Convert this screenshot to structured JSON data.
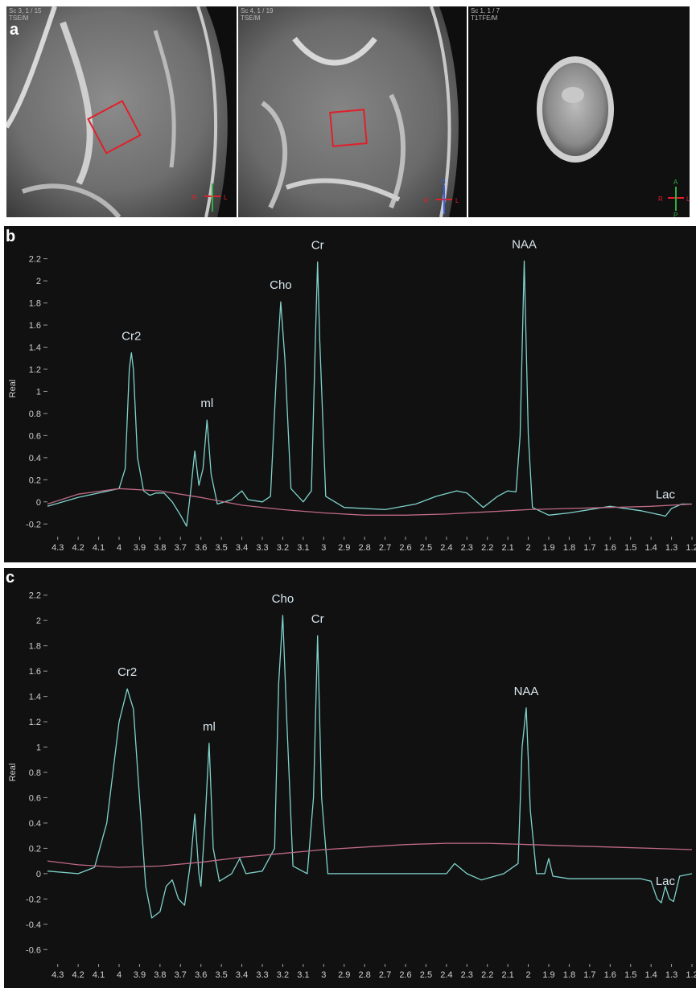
{
  "panel_a": {
    "letter": "a",
    "images": [
      {
        "label": "Sc 3, 1 / 15\nTSE/M",
        "orientation": {
          "right": "R",
          "left": "L"
        }
      },
      {
        "label": "Sc 4, 1 / 19\nTSE/M",
        "orientation": {
          "head": "H",
          "right": "R",
          "left": "L"
        }
      },
      {
        "label": "Sc 1, 1 / 7\nT1TFE/M",
        "orientation": {
          "anterior": "A",
          "posterior": "P",
          "right": "R",
          "left": "L"
        }
      }
    ],
    "roi_color": "#e0202a"
  },
  "chart_data": [
    {
      "panel": "b",
      "type": "line",
      "ylabel": "Real",
      "xlabel": "",
      "xlim": [
        4.35,
        1.2
      ],
      "ylim": [
        -0.3,
        2.35
      ],
      "x_ticks": [
        "4.3",
        "4.2",
        "4.1",
        "4",
        "3.9",
        "3.8",
        "3.7",
        "3.6",
        "3.5",
        "3.4",
        "3.3",
        "3.2",
        "3.1",
        "3",
        "2.9",
        "2.8",
        "2.7",
        "2.6",
        "2.5",
        "2.4",
        "2.3",
        "2.2",
        "2.1",
        "2",
        "1.9",
        "1.8",
        "1.7",
        "1.6",
        "1.5",
        "1.4",
        "1.3",
        "1.2"
      ],
      "y_ticks": [
        "-0.2",
        "0",
        "0.2",
        "0.4",
        "0.6",
        "0.8",
        "1",
        "1.2",
        "1.4",
        "1.6",
        "1.8",
        "2",
        "2.2"
      ],
      "peaks": [
        {
          "label": "Cr2",
          "x": 3.94,
          "y": 1.35
        },
        {
          "label": "ml",
          "x": 3.57,
          "y": 0.74
        },
        {
          "label": "Cho",
          "x": 3.21,
          "y": 1.81
        },
        {
          "label": "Cr",
          "x": 3.03,
          "y": 2.17
        },
        {
          "label": "NAA",
          "x": 2.02,
          "y": 2.18
        },
        {
          "label": "Lac",
          "x": 1.33,
          "y": -0.13
        }
      ],
      "series": [
        {
          "color": "#7fd3cc",
          "points": [
            [
              4.35,
              -0.04
            ],
            [
              4.2,
              0.04
            ],
            [
              4.1,
              0.08
            ],
            [
              4.0,
              0.12
            ],
            [
              3.97,
              0.3
            ],
            [
              3.95,
              1.2
            ],
            [
              3.94,
              1.35
            ],
            [
              3.93,
              1.2
            ],
            [
              3.91,
              0.4
            ],
            [
              3.88,
              0.1
            ],
            [
              3.85,
              0.06
            ],
            [
              3.82,
              0.08
            ],
            [
              3.78,
              0.08
            ],
            [
              3.74,
              0.0
            ],
            [
              3.7,
              -0.12
            ],
            [
              3.67,
              -0.22
            ],
            [
              3.65,
              0.1
            ],
            [
              3.63,
              0.46
            ],
            [
              3.61,
              0.15
            ],
            [
              3.59,
              0.3
            ],
            [
              3.57,
              0.74
            ],
            [
              3.55,
              0.25
            ],
            [
              3.52,
              -0.02
            ],
            [
              3.45,
              0.02
            ],
            [
              3.4,
              0.1
            ],
            [
              3.37,
              0.02
            ],
            [
              3.3,
              0.0
            ],
            [
              3.26,
              0.05
            ],
            [
              3.23,
              1.2
            ],
            [
              3.21,
              1.81
            ],
            [
              3.19,
              1.3
            ],
            [
              3.16,
              0.12
            ],
            [
              3.1,
              0.0
            ],
            [
              3.06,
              0.1
            ],
            [
              3.04,
              1.5
            ],
            [
              3.03,
              2.17
            ],
            [
              3.02,
              1.5
            ],
            [
              2.99,
              0.05
            ],
            [
              2.9,
              -0.05
            ],
            [
              2.7,
              -0.07
            ],
            [
              2.55,
              -0.02
            ],
            [
              2.45,
              0.05
            ],
            [
              2.35,
              0.1
            ],
            [
              2.3,
              0.08
            ],
            [
              2.22,
              -0.05
            ],
            [
              2.15,
              0.05
            ],
            [
              2.1,
              0.1
            ],
            [
              2.06,
              0.09
            ],
            [
              2.04,
              0.6
            ],
            [
              2.02,
              2.18
            ],
            [
              2.0,
              0.6
            ],
            [
              1.98,
              -0.05
            ],
            [
              1.9,
              -0.12
            ],
            [
              1.8,
              -0.1
            ],
            [
              1.6,
              -0.04
            ],
            [
              1.45,
              -0.08
            ],
            [
              1.4,
              -0.1
            ],
            [
              1.35,
              -0.12
            ],
            [
              1.33,
              -0.13
            ],
            [
              1.3,
              -0.06
            ],
            [
              1.25,
              -0.02
            ],
            [
              1.2,
              -0.02
            ]
          ]
        },
        {
          "color": "#c06a86",
          "points": [
            [
              4.35,
              -0.02
            ],
            [
              4.2,
              0.07
            ],
            [
              4.0,
              0.12
            ],
            [
              3.8,
              0.1
            ],
            [
              3.6,
              0.04
            ],
            [
              3.4,
              -0.03
            ],
            [
              3.2,
              -0.07
            ],
            [
              3.0,
              -0.1
            ],
            [
              2.8,
              -0.12
            ],
            [
              2.6,
              -0.12
            ],
            [
              2.4,
              -0.11
            ],
            [
              2.2,
              -0.09
            ],
            [
              2.0,
              -0.07
            ],
            [
              1.8,
              -0.06
            ],
            [
              1.6,
              -0.05
            ],
            [
              1.4,
              -0.04
            ],
            [
              1.2,
              -0.02
            ]
          ]
        }
      ]
    },
    {
      "panel": "c",
      "type": "line",
      "ylabel": "Real",
      "xlabel": "",
      "xlim": [
        4.35,
        1.2
      ],
      "ylim": [
        -0.7,
        2.3
      ],
      "x_ticks": [
        "4.3",
        "4.2",
        "4.1",
        "4",
        "3.9",
        "3.8",
        "3.7",
        "3.6",
        "3.5",
        "3.4",
        "3.3",
        "3.2",
        "3.1",
        "3",
        "2.9",
        "2.8",
        "2.7",
        "2.6",
        "2.5",
        "2.4",
        "2.3",
        "2.2",
        "2.1",
        "2",
        "1.9",
        "1.8",
        "1.7",
        "1.6",
        "1.5",
        "1.4",
        "1.3",
        "1.2"
      ],
      "y_ticks": [
        "-0.6",
        "-0.4",
        "-0.2",
        "0",
        "0.2",
        "0.4",
        "0.6",
        "0.8",
        "1",
        "1.2",
        "1.4",
        "1.6",
        "1.8",
        "2",
        "2.2"
      ],
      "peaks": [
        {
          "label": "Cr2",
          "x": 3.96,
          "y": 1.46
        },
        {
          "label": "ml",
          "x": 3.56,
          "y": 1.03
        },
        {
          "label": "Cho",
          "x": 3.2,
          "y": 2.04
        },
        {
          "label": "Cr",
          "x": 3.03,
          "y": 1.88
        },
        {
          "label": "NAA",
          "x": 2.01,
          "y": 1.31
        },
        {
          "label": "Lac",
          "x": 1.33,
          "y": -0.23
        }
      ],
      "series": [
        {
          "color": "#7fd3cc",
          "points": [
            [
              4.35,
              0.02
            ],
            [
              4.2,
              0.0
            ],
            [
              4.12,
              0.05
            ],
            [
              4.06,
              0.4
            ],
            [
              4.0,
              1.2
            ],
            [
              3.96,
              1.46
            ],
            [
              3.93,
              1.3
            ],
            [
              3.9,
              0.6
            ],
            [
              3.87,
              -0.1
            ],
            [
              3.84,
              -0.35
            ],
            [
              3.8,
              -0.3
            ],
            [
              3.77,
              -0.1
            ],
            [
              3.74,
              -0.05
            ],
            [
              3.71,
              -0.2
            ],
            [
              3.68,
              -0.25
            ],
            [
              3.65,
              0.1
            ],
            [
              3.63,
              0.47
            ],
            [
              3.61,
              0.0
            ],
            [
              3.6,
              -0.1
            ],
            [
              3.58,
              0.4
            ],
            [
              3.56,
              1.03
            ],
            [
              3.54,
              0.2
            ],
            [
              3.51,
              -0.06
            ],
            [
              3.45,
              0.0
            ],
            [
              3.41,
              0.12
            ],
            [
              3.38,
              0.0
            ],
            [
              3.3,
              0.02
            ],
            [
              3.24,
              0.2
            ],
            [
              3.22,
              1.5
            ],
            [
              3.2,
              2.04
            ],
            [
              3.18,
              1.2
            ],
            [
              3.15,
              0.06
            ],
            [
              3.08,
              0.0
            ],
            [
              3.05,
              0.6
            ],
            [
              3.03,
              1.88
            ],
            [
              3.01,
              0.6
            ],
            [
              2.98,
              0.0
            ],
            [
              2.6,
              0.0
            ],
            [
              2.4,
              0.0
            ],
            [
              2.36,
              0.08
            ],
            [
              2.3,
              0.0
            ],
            [
              2.23,
              -0.05
            ],
            [
              2.12,
              0.0
            ],
            [
              2.05,
              0.08
            ],
            [
              2.03,
              1.0
            ],
            [
              2.01,
              1.31
            ],
            [
              1.99,
              0.5
            ],
            [
              1.96,
              0.0
            ],
            [
              1.92,
              0.0
            ],
            [
              1.9,
              0.12
            ],
            [
              1.88,
              -0.02
            ],
            [
              1.8,
              -0.04
            ],
            [
              1.6,
              -0.04
            ],
            [
              1.45,
              -0.04
            ],
            [
              1.4,
              -0.06
            ],
            [
              1.37,
              -0.2
            ],
            [
              1.35,
              -0.23
            ],
            [
              1.33,
              -0.1
            ],
            [
              1.31,
              -0.2
            ],
            [
              1.29,
              -0.22
            ],
            [
              1.26,
              -0.02
            ],
            [
              1.2,
              0.0
            ]
          ]
        },
        {
          "color": "#c06a86",
          "points": [
            [
              4.35,
              0.1
            ],
            [
              4.2,
              0.07
            ],
            [
              4.0,
              0.05
            ],
            [
              3.8,
              0.06
            ],
            [
              3.6,
              0.09
            ],
            [
              3.4,
              0.13
            ],
            [
              3.2,
              0.16
            ],
            [
              3.0,
              0.19
            ],
            [
              2.8,
              0.21
            ],
            [
              2.6,
              0.23
            ],
            [
              2.4,
              0.24
            ],
            [
              2.2,
              0.24
            ],
            [
              2.0,
              0.23
            ],
            [
              1.8,
              0.22
            ],
            [
              1.6,
              0.21
            ],
            [
              1.4,
              0.2
            ],
            [
              1.2,
              0.19
            ]
          ]
        }
      ]
    }
  ]
}
